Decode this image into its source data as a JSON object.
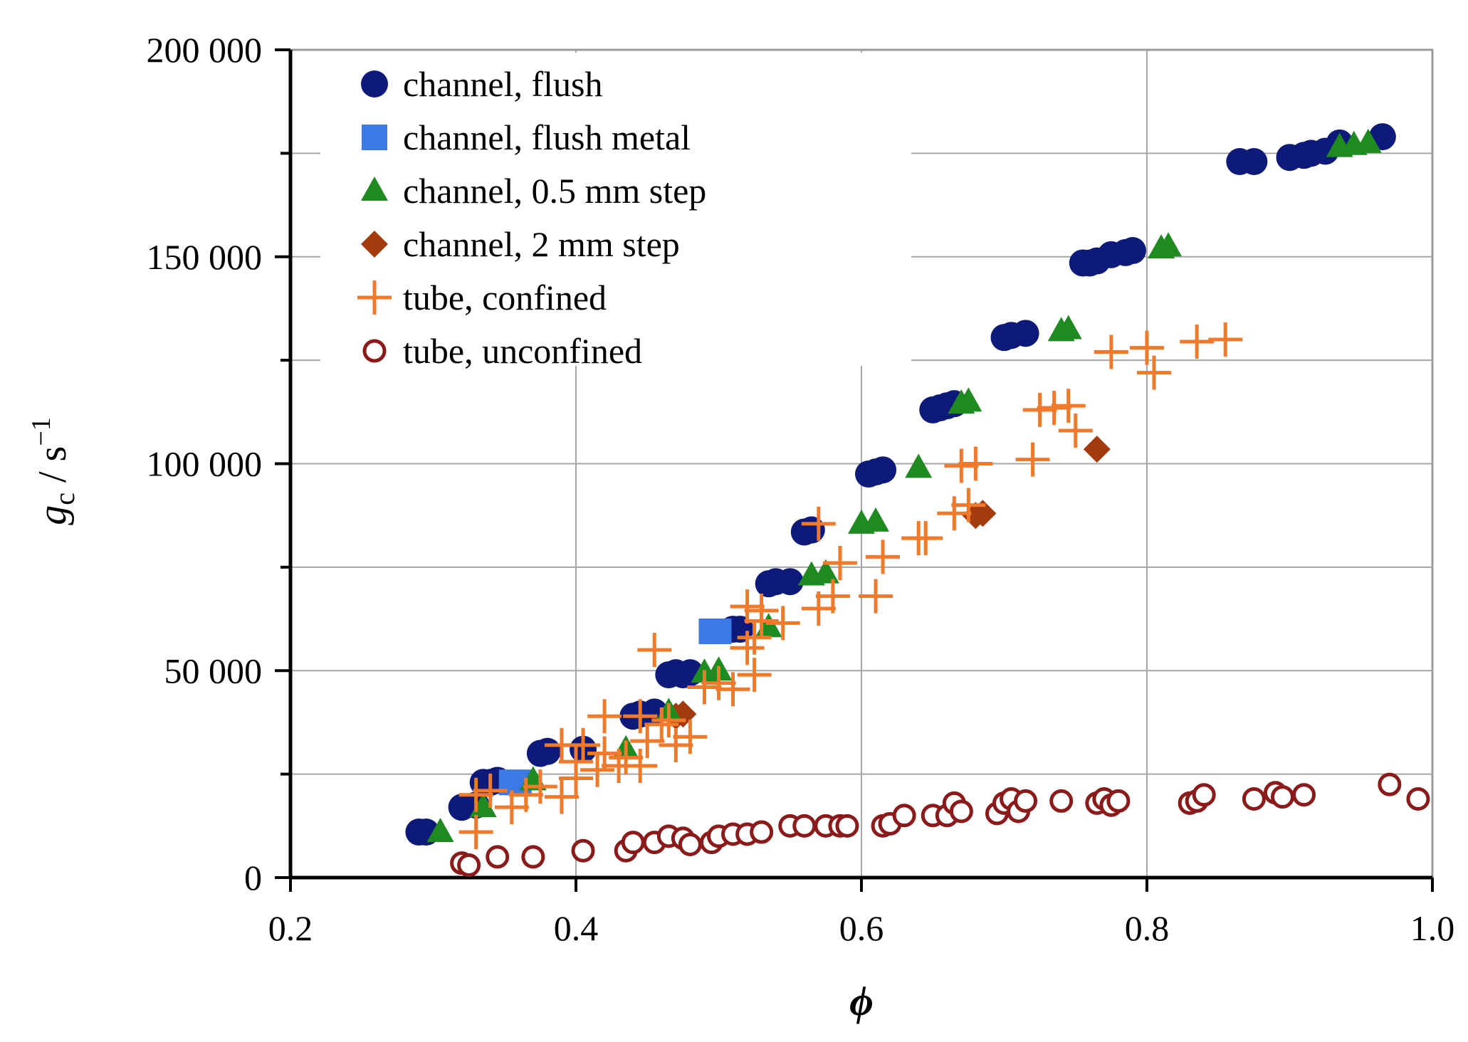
{
  "chart_data": {
    "type": "scatter",
    "xlabel": "ϕ",
    "ylabel": "g c / s−1",
    "ylabel_parts": {
      "var": "g",
      "sub": "c",
      "unit": " / s",
      "exp": "−1"
    },
    "xlim": [
      0.2,
      1.0
    ],
    "ylim": [
      0,
      200000
    ],
    "x_ticks": [
      0.2,
      0.4,
      0.6,
      0.8,
      1.0
    ],
    "x_tick_labels": [
      "0.2",
      "0.4",
      "0.6",
      "0.8",
      "1.0"
    ],
    "y_ticks": [
      0,
      50000,
      100000,
      150000,
      200000
    ],
    "y_tick_labels": [
      "0",
      "50 000",
      "100 000",
      "150 000",
      "200 000"
    ],
    "grid": true,
    "legend_position": "top-left",
    "series": [
      {
        "name": "channel, flush",
        "marker": "circle-filled",
        "color": "#0d1a7a",
        "points": [
          [
            0.29,
            11000
          ],
          [
            0.295,
            11000
          ],
          [
            0.32,
            17000
          ],
          [
            0.33,
            17500
          ],
          [
            0.335,
            23000
          ],
          [
            0.34,
            23000
          ],
          [
            0.345,
            23500
          ],
          [
            0.375,
            30000
          ],
          [
            0.38,
            30500
          ],
          [
            0.405,
            31000
          ],
          [
            0.44,
            39000
          ],
          [
            0.445,
            39500
          ],
          [
            0.455,
            40000
          ],
          [
            0.465,
            49000
          ],
          [
            0.47,
            49500
          ],
          [
            0.475,
            49000
          ],
          [
            0.48,
            49500
          ],
          [
            0.51,
            60000
          ],
          [
            0.515,
            60000
          ],
          [
            0.535,
            71000
          ],
          [
            0.54,
            71500
          ],
          [
            0.55,
            71500
          ],
          [
            0.56,
            83500
          ],
          [
            0.565,
            84000
          ],
          [
            0.605,
            97500
          ],
          [
            0.61,
            98000
          ],
          [
            0.615,
            98500
          ],
          [
            0.65,
            113000
          ],
          [
            0.655,
            113500
          ],
          [
            0.66,
            114000
          ],
          [
            0.665,
            114500
          ],
          [
            0.7,
            130500
          ],
          [
            0.705,
            131000
          ],
          [
            0.715,
            131500
          ],
          [
            0.755,
            148500
          ],
          [
            0.76,
            148500
          ],
          [
            0.765,
            149000
          ],
          [
            0.775,
            150500
          ],
          [
            0.785,
            151000
          ],
          [
            0.79,
            151500
          ],
          [
            0.865,
            173000
          ],
          [
            0.875,
            173000
          ],
          [
            0.9,
            174000
          ],
          [
            0.91,
            174500
          ],
          [
            0.915,
            175000
          ],
          [
            0.925,
            175500
          ],
          [
            0.935,
            177500
          ],
          [
            0.965,
            179000
          ]
        ]
      },
      {
        "name": "channel, flush metal",
        "marker": "square-filled",
        "color": "#3b7ae6",
        "points": [
          [
            0.355,
            23000
          ],
          [
            0.36,
            23000
          ],
          [
            0.495,
            59500
          ],
          [
            0.5,
            59500
          ]
        ]
      },
      {
        "name": "channel, 0.5 mm step",
        "marker": "triangle-filled",
        "color": "#1f8a1f",
        "points": [
          [
            0.305,
            11000
          ],
          [
            0.335,
            17000
          ],
          [
            0.37,
            23500
          ],
          [
            0.435,
            31000
          ],
          [
            0.465,
            40000
          ],
          [
            0.49,
            49500
          ],
          [
            0.5,
            50000
          ],
          [
            0.535,
            60500
          ],
          [
            0.565,
            73000
          ],
          [
            0.575,
            73500
          ],
          [
            0.6,
            85500
          ],
          [
            0.61,
            86000
          ],
          [
            0.64,
            99000
          ],
          [
            0.67,
            114500
          ],
          [
            0.675,
            115000
          ],
          [
            0.74,
            132000
          ],
          [
            0.745,
            132500
          ],
          [
            0.81,
            152000
          ],
          [
            0.815,
            152500
          ],
          [
            0.935,
            176500
          ],
          [
            0.945,
            177000
          ],
          [
            0.955,
            177500
          ]
        ]
      },
      {
        "name": "channel, 2 mm step",
        "marker": "diamond-filled",
        "color": "#a33b0f",
        "points": [
          [
            0.47,
            39000
          ],
          [
            0.475,
            39500
          ],
          [
            0.68,
            87500
          ],
          [
            0.685,
            88000
          ],
          [
            0.765,
            103500
          ]
        ]
      },
      {
        "name": "tube, confined",
        "marker": "plus",
        "color": "#f07a2c",
        "points": [
          [
            0.33,
            11000
          ],
          [
            0.33,
            20000
          ],
          [
            0.34,
            21000
          ],
          [
            0.355,
            17000
          ],
          [
            0.365,
            20000
          ],
          [
            0.375,
            22000
          ],
          [
            0.39,
            19500
          ],
          [
            0.39,
            32000
          ],
          [
            0.4,
            24000
          ],
          [
            0.4,
            28000
          ],
          [
            0.405,
            32000
          ],
          [
            0.415,
            26000
          ],
          [
            0.42,
            30000
          ],
          [
            0.42,
            39000
          ],
          [
            0.43,
            27000
          ],
          [
            0.435,
            29000
          ],
          [
            0.445,
            27000
          ],
          [
            0.445,
            39000
          ],
          [
            0.45,
            33000
          ],
          [
            0.455,
            55000
          ],
          [
            0.46,
            37000
          ],
          [
            0.465,
            38000
          ],
          [
            0.47,
            32000
          ],
          [
            0.48,
            34000
          ],
          [
            0.49,
            46000
          ],
          [
            0.5,
            47000
          ],
          [
            0.51,
            45500
          ],
          [
            0.52,
            55500
          ],
          [
            0.52,
            65500
          ],
          [
            0.525,
            58000
          ],
          [
            0.525,
            49000
          ],
          [
            0.53,
            62000
          ],
          [
            0.53,
            64500
          ],
          [
            0.545,
            61500
          ],
          [
            0.57,
            65000
          ],
          [
            0.57,
            85500
          ],
          [
            0.58,
            68000
          ],
          [
            0.585,
            76000
          ],
          [
            0.61,
            68000
          ],
          [
            0.615,
            77500
          ],
          [
            0.64,
            82000
          ],
          [
            0.645,
            82000
          ],
          [
            0.665,
            88000
          ],
          [
            0.67,
            99500
          ],
          [
            0.675,
            90000
          ],
          [
            0.68,
            100000
          ],
          [
            0.72,
            101000
          ],
          [
            0.725,
            113000
          ],
          [
            0.735,
            113500
          ],
          [
            0.745,
            114000
          ],
          [
            0.75,
            108000
          ],
          [
            0.775,
            127000
          ],
          [
            0.8,
            128000
          ],
          [
            0.805,
            122000
          ],
          [
            0.835,
            129500
          ],
          [
            0.855,
            130000
          ]
        ]
      },
      {
        "name": "tube, unconfined",
        "marker": "circle-open",
        "color": "#8b1a1a",
        "points": [
          [
            0.32,
            3500
          ],
          [
            0.325,
            3000
          ],
          [
            0.345,
            5000
          ],
          [
            0.37,
            5000
          ],
          [
            0.405,
            6500
          ],
          [
            0.435,
            6500
          ],
          [
            0.44,
            8500
          ],
          [
            0.455,
            8500
          ],
          [
            0.465,
            10000
          ],
          [
            0.475,
            9500
          ],
          [
            0.48,
            8000
          ],
          [
            0.495,
            8500
          ],
          [
            0.5,
            10000
          ],
          [
            0.51,
            10500
          ],
          [
            0.52,
            10500
          ],
          [
            0.53,
            11000
          ],
          [
            0.55,
            12500
          ],
          [
            0.56,
            12500
          ],
          [
            0.575,
            12500
          ],
          [
            0.585,
            12500
          ],
          [
            0.59,
            12500
          ],
          [
            0.615,
            12500
          ],
          [
            0.62,
            13000
          ],
          [
            0.63,
            15000
          ],
          [
            0.65,
            15000
          ],
          [
            0.66,
            15000
          ],
          [
            0.665,
            18000
          ],
          [
            0.67,
            16000
          ],
          [
            0.695,
            15500
          ],
          [
            0.7,
            18000
          ],
          [
            0.705,
            19000
          ],
          [
            0.71,
            16000
          ],
          [
            0.715,
            18500
          ],
          [
            0.74,
            18500
          ],
          [
            0.765,
            18000
          ],
          [
            0.77,
            19000
          ],
          [
            0.775,
            17500
          ],
          [
            0.78,
            18500
          ],
          [
            0.83,
            18000
          ],
          [
            0.835,
            18500
          ],
          [
            0.84,
            20000
          ],
          [
            0.875,
            19000
          ],
          [
            0.89,
            20500
          ],
          [
            0.895,
            19500
          ],
          [
            0.91,
            20000
          ],
          [
            0.97,
            22500
          ],
          [
            0.99,
            19000
          ]
        ]
      }
    ]
  }
}
